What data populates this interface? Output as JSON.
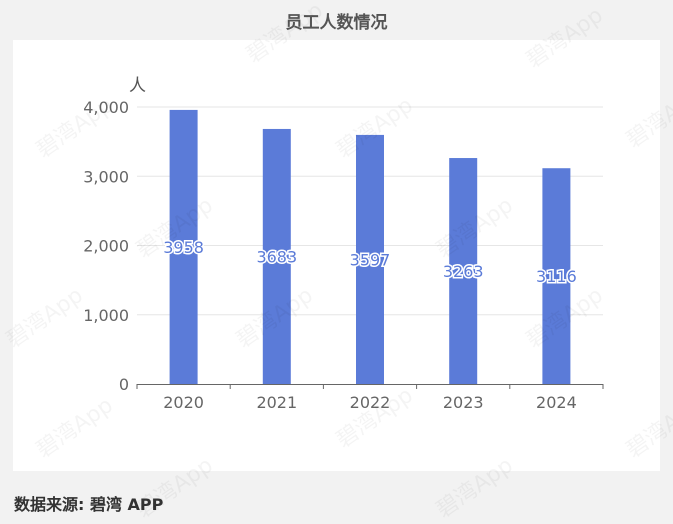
{
  "page": {
    "title": "员工人数情况",
    "source": "数据来源: 碧湾 APP",
    "watermark": "碧湾App"
  },
  "chart_data": {
    "type": "bar",
    "title": "员工人数情况",
    "ylabel": "人",
    "xlabel": "",
    "categories": [
      "2020",
      "2021",
      "2022",
      "2023",
      "2024"
    ],
    "values": [
      3958,
      3683,
      3597,
      3263,
      3116
    ],
    "ylim": [
      0,
      4000
    ],
    "yticks": [
      0,
      1000,
      2000,
      3000,
      4000
    ],
    "ytick_labels": [
      "0",
      "1,000",
      "2,000",
      "3,000",
      "4,000"
    ],
    "grid": true,
    "bar_color": "#5b7bd8",
    "data_labels": true
  }
}
